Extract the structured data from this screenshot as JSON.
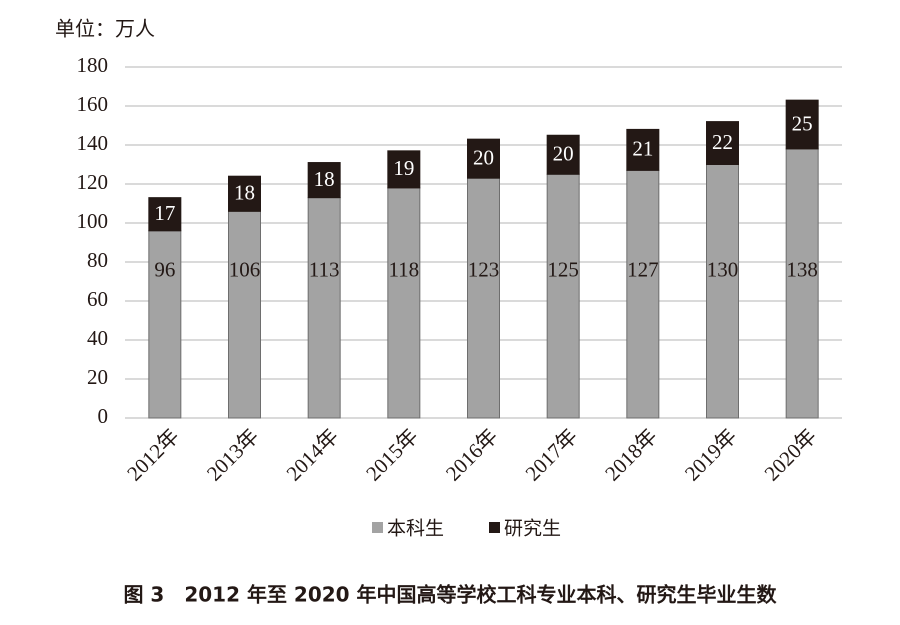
{
  "chart_data": {
    "type": "stacked_bar",
    "title": "图 3　2012 年至 2020 年中国高等学校工科专业本科、研究生毕业生数",
    "y_label": "单位：万人",
    "categories": [
      "2012年",
      "2013年",
      "2014年",
      "2015年",
      "2016年",
      "2017年",
      "2018年",
      "2019年",
      "2020年"
    ],
    "series": [
      {
        "name": "本科生",
        "color": "#a3a3a3",
        "values": [
          96,
          106,
          113,
          118,
          123,
          125,
          127,
          130,
          138
        ]
      },
      {
        "name": "研究生",
        "color": "#231815",
        "values": [
          17,
          18,
          18,
          19,
          20,
          20,
          21,
          22,
          25
        ]
      }
    ],
    "ylim": [
      0,
      180
    ],
    "yticks": [
      0,
      20,
      40,
      60,
      80,
      100,
      120,
      140,
      160,
      180
    ],
    "grid": true
  }
}
